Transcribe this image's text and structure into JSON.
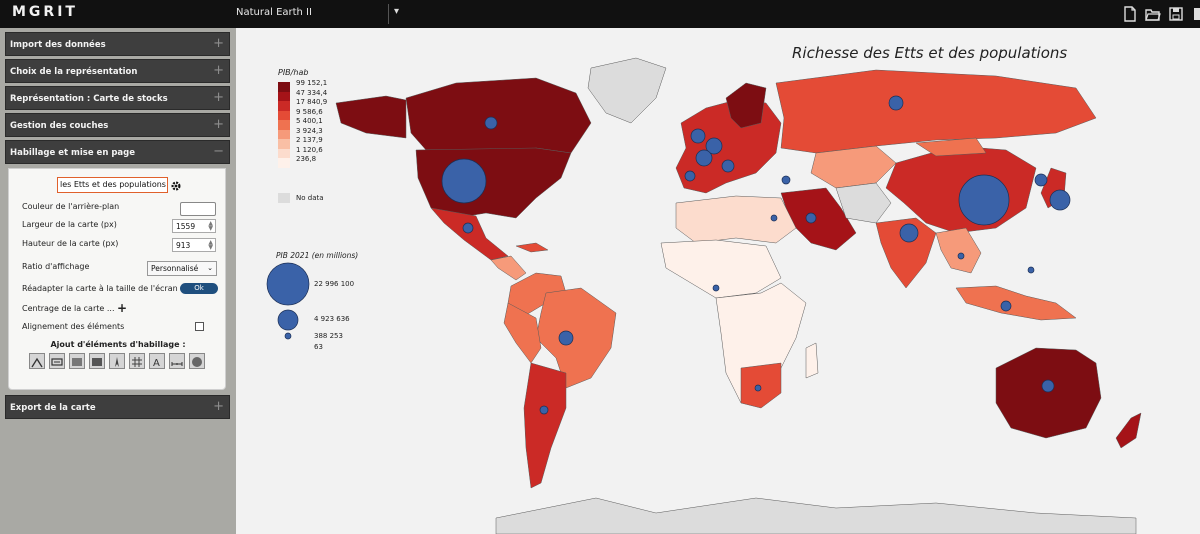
{
  "app": {
    "logo": "MGRIT",
    "project_name": "Natural Earth II"
  },
  "sidebar": {
    "sections": [
      {
        "label": "Import des données",
        "toggle": "+"
      },
      {
        "label": "Choix de la représentation",
        "toggle": "+"
      },
      {
        "label": "Représentation : Carte de stocks",
        "toggle": "+"
      },
      {
        "label": "Gestion des couches",
        "toggle": "+"
      },
      {
        "label": "Habillage et mise en page",
        "toggle": "−"
      },
      {
        "label": "Export de la carte",
        "toggle": "+"
      }
    ],
    "layout_panel": {
      "title_input_value": "les Etts et des populations",
      "bg_color_label": "Couleur de l'arrière-plan",
      "width_label": "Largeur de la carte (px)",
      "width_value": "1559",
      "height_label": "Hauteur de la carte (px)",
      "height_value": "913",
      "ratio_label": "Ratio d'affichage",
      "ratio_value": "Personnalisé",
      "fit_label": "Réadapter la carte à la taille de l'écran",
      "ok_label": "Ok",
      "center_label": "Centrage de la carte ...",
      "align_label": "Alignement des éléments",
      "add_elements_label": "Ajout d'éléments d'habillage :"
    },
    "tool_icons": [
      "arrow-icon",
      "text-box-icon",
      "rectangle-icon",
      "north-arrow-icon",
      "graticule-icon",
      "text-icon",
      "scale-bar-icon",
      "sphere-icon"
    ]
  },
  "map": {
    "title": "Richesse des Etts et des populations",
    "choropleth_legend": {
      "title": "PIB/hab",
      "breaks": [
        "99 152,1",
        "47 334,4",
        "17 840,9",
        "9 586,6",
        "5 400,1",
        "3 924,3",
        "2 137,9",
        "1 120,6",
        "236,8"
      ],
      "colors": [
        "#7d0d12",
        "#a51318",
        "#cb2a26",
        "#e44b36",
        "#ef7250",
        "#f69a7a",
        "#f9bfa5",
        "#fcdccd",
        "#fef1ea"
      ],
      "nodata_label": "No data",
      "nodata_color": "#dcdcdc"
    },
    "symbol_legend": {
      "title": "PIB 2021 (en millions)",
      "values": [
        "22 996 100",
        "4 923 636",
        "388 253",
        "63"
      ],
      "color": "#3a62a8"
    }
  }
}
